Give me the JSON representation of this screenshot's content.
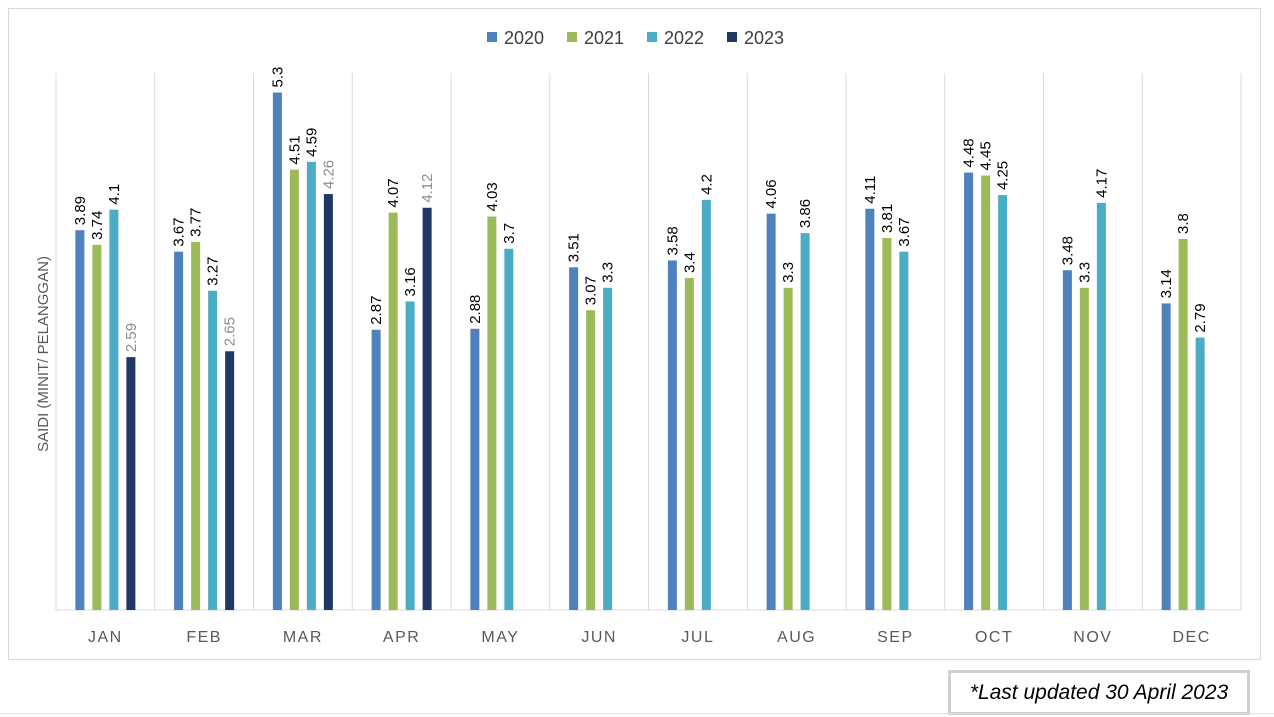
{
  "chart_data": {
    "type": "bar",
    "categories": [
      "JAN",
      "FEB",
      "MAR",
      "APR",
      "MAY",
      "JUN",
      "JUL",
      "AUG",
      "SEP",
      "OCT",
      "NOV",
      "DEC"
    ],
    "series": [
      {
        "name": "2020",
        "color": "#4f81bd",
        "label_color": "#000000",
        "values": [
          3.89,
          3.67,
          5.3,
          2.87,
          2.88,
          3.51,
          3.58,
          4.06,
          4.11,
          4.48,
          3.48,
          3.14
        ]
      },
      {
        "name": "2021",
        "color": "#9bbb59",
        "label_color": "#000000",
        "values": [
          3.74,
          3.77,
          4.51,
          4.07,
          4.03,
          3.07,
          3.4,
          3.3,
          3.81,
          4.45,
          3.3,
          3.8
        ]
      },
      {
        "name": "2022",
        "color": "#4bacc6",
        "label_color": "#000000",
        "values": [
          4.1,
          3.27,
          4.59,
          3.16,
          3.7,
          3.3,
          4.2,
          3.86,
          3.67,
          4.25,
          4.17,
          2.79
        ]
      },
      {
        "name": "2023",
        "color": "#1f3864",
        "label_color": "#8c8c8c",
        "values": [
          2.59,
          2.65,
          4.26,
          4.12,
          null,
          null,
          null,
          null,
          null,
          null,
          null,
          null
        ]
      }
    ],
    "ylabel": "SAIDI (MINIT/ PELANGGAN)",
    "xlabel": "",
    "ylim": [
      0,
      5.5
    ],
    "legend_position": "top-center",
    "grid": "vertical category separators"
  },
  "footnote": "*Last updated 30 April 2023"
}
